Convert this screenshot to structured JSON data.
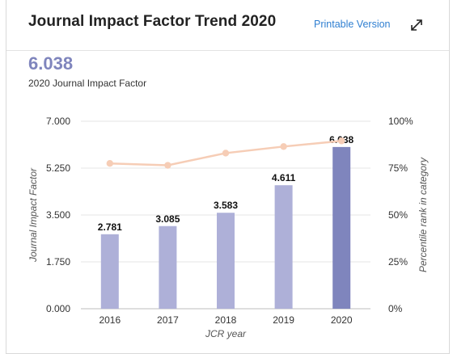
{
  "header": {
    "title": "Journal Impact Factor Trend 2020",
    "printable_label": "Printable Version",
    "expand_icon": "expand-diagonal-icon"
  },
  "summary": {
    "value": "6.038",
    "label": "2020 Journal Impact Factor"
  },
  "colors": {
    "bar": "#aeb0d8",
    "bar_highlight": "#7f85bd",
    "line": "#f6cdb6",
    "title_value": "#7f85bd",
    "link": "#2f7fd1"
  },
  "chart_data": {
    "type": "bar",
    "categories": [
      "2016",
      "2017",
      "2018",
      "2019",
      "2020"
    ],
    "series": [
      {
        "name": "Journal Impact Factor",
        "type": "bar",
        "axis": "left",
        "values": [
          2.781,
          3.085,
          3.583,
          4.611,
          6.038
        ],
        "labels": [
          "2.781",
          "3.085",
          "3.583",
          "4.611",
          "6.038"
        ]
      },
      {
        "name": "Percentile rank in category",
        "type": "line",
        "axis": "right",
        "values": [
          77.5,
          76.5,
          83.0,
          86.5,
          89.5
        ]
      }
    ],
    "xlabel": "JCR year",
    "ylabel": "Journal Impact Factor",
    "y2label": "Percentile rank in category",
    "ylim": [
      0,
      7
    ],
    "y2lim": [
      0,
      100
    ],
    "yticks": [
      "0.000",
      "1.750",
      "3.500",
      "5.250",
      "7.000"
    ],
    "y2ticks": [
      "0%",
      "25%",
      "50%",
      "75%",
      "100%"
    ],
    "grid": true
  }
}
